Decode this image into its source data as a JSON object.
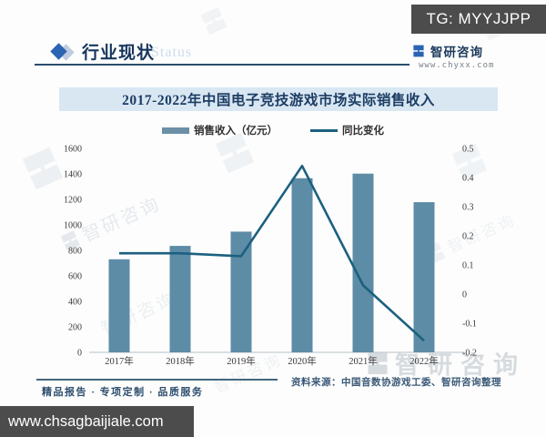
{
  "overlay": {
    "tg_label": "TG: MYYJJPP",
    "website_label": "www.chsagbaijiale.com"
  },
  "header": {
    "title": "行业现状",
    "watermark_text": "Status",
    "brand": {
      "name": "智研咨询",
      "url": "www.chyxx.com"
    }
  },
  "chart_title": "2017-2022年中国电子竞技游戏市场实际销售收入",
  "legend": [
    {
      "label": "销售收入（亿元）",
      "type": "bar"
    },
    {
      "label": "同比变化",
      "type": "line"
    }
  ],
  "chart_data": {
    "type": "bar",
    "title": "2017-2022年中国电子竞技游戏市场实际销售收入",
    "categories": [
      "2017年",
      "2018年",
      "2019年",
      "2020年",
      "2021年",
      "2022年"
    ],
    "series": [
      {
        "name": "销售收入（亿元）",
        "type": "bar",
        "axis": "left",
        "values": [
          730,
          835,
          947,
          1366,
          1402,
          1178
        ]
      },
      {
        "name": "同比变化",
        "type": "line",
        "axis": "right",
        "values": [
          0.14,
          0.14,
          0.13,
          0.44,
          0.03,
          -0.16
        ]
      }
    ],
    "xlabel": "",
    "ylabel_left": "销售收入（亿元）",
    "ylabel_right": "同比变化",
    "left_axis": {
      "min": 0,
      "max": 1600,
      "step": 200
    },
    "right_axis": {
      "min": -0.2,
      "max": 0.5,
      "step": 0.1
    },
    "grid": false,
    "legend_position": "top"
  },
  "footer": {
    "tagline": "精品报告 · 专项定制 · 品质服务",
    "source": "资料来源：中国音数协游戏工委、智研咨询整理"
  },
  "watermark": {
    "text": "智研咨询"
  },
  "colors": {
    "bar": "#5d8ca6",
    "line": "#1c607f",
    "banner_bg": "#d9e7f3",
    "accent_navy": "#16365c",
    "diamond_blue": "#2a64b2",
    "box_gray": "#4c4c4c",
    "axis_text": "#3a3a3a",
    "baseline": "#c6ccd2"
  }
}
